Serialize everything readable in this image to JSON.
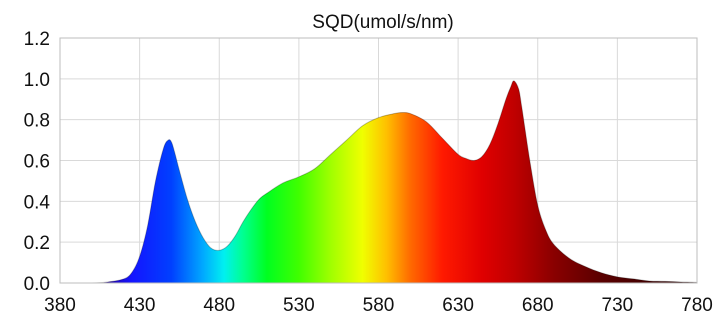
{
  "chart_data": {
    "type": "area",
    "title": "SQD(umol/s/nm)",
    "xlabel": "",
    "ylabel": "",
    "xlim": [
      380,
      780
    ],
    "ylim": [
      0,
      1.2
    ],
    "grid": true,
    "x_ticks": [
      "380",
      "430",
      "480",
      "530",
      "580",
      "630",
      "680",
      "730",
      "780"
    ],
    "y_ticks": [
      "0.0",
      "0.2",
      "0.4",
      "0.6",
      "0.8",
      "1.0",
      "1.2"
    ],
    "x": [
      380,
      400,
      410,
      420,
      425,
      430,
      435,
      440,
      445,
      448,
      450,
      452,
      455,
      460,
      465,
      470,
      475,
      480,
      485,
      490,
      495,
      500,
      505,
      510,
      520,
      530,
      540,
      550,
      560,
      570,
      580,
      590,
      595,
      600,
      610,
      620,
      630,
      635,
      640,
      645,
      650,
      655,
      660,
      663,
      665,
      668,
      670,
      675,
      680,
      685,
      690,
      700,
      710,
      720,
      730,
      740,
      750,
      760,
      770,
      780
    ],
    "values": [
      0.0,
      0.0,
      0.005,
      0.02,
      0.05,
      0.13,
      0.28,
      0.5,
      0.66,
      0.7,
      0.69,
      0.64,
      0.55,
      0.41,
      0.3,
      0.22,
      0.17,
      0.16,
      0.18,
      0.23,
      0.3,
      0.36,
      0.41,
      0.44,
      0.49,
      0.52,
      0.56,
      0.63,
      0.7,
      0.77,
      0.81,
      0.83,
      0.835,
      0.83,
      0.79,
      0.71,
      0.63,
      0.61,
      0.6,
      0.62,
      0.68,
      0.78,
      0.9,
      0.96,
      0.99,
      0.95,
      0.86,
      0.6,
      0.38,
      0.26,
      0.19,
      0.12,
      0.08,
      0.05,
      0.03,
      0.02,
      0.01,
      0.008,
      0.005,
      0.003
    ]
  }
}
